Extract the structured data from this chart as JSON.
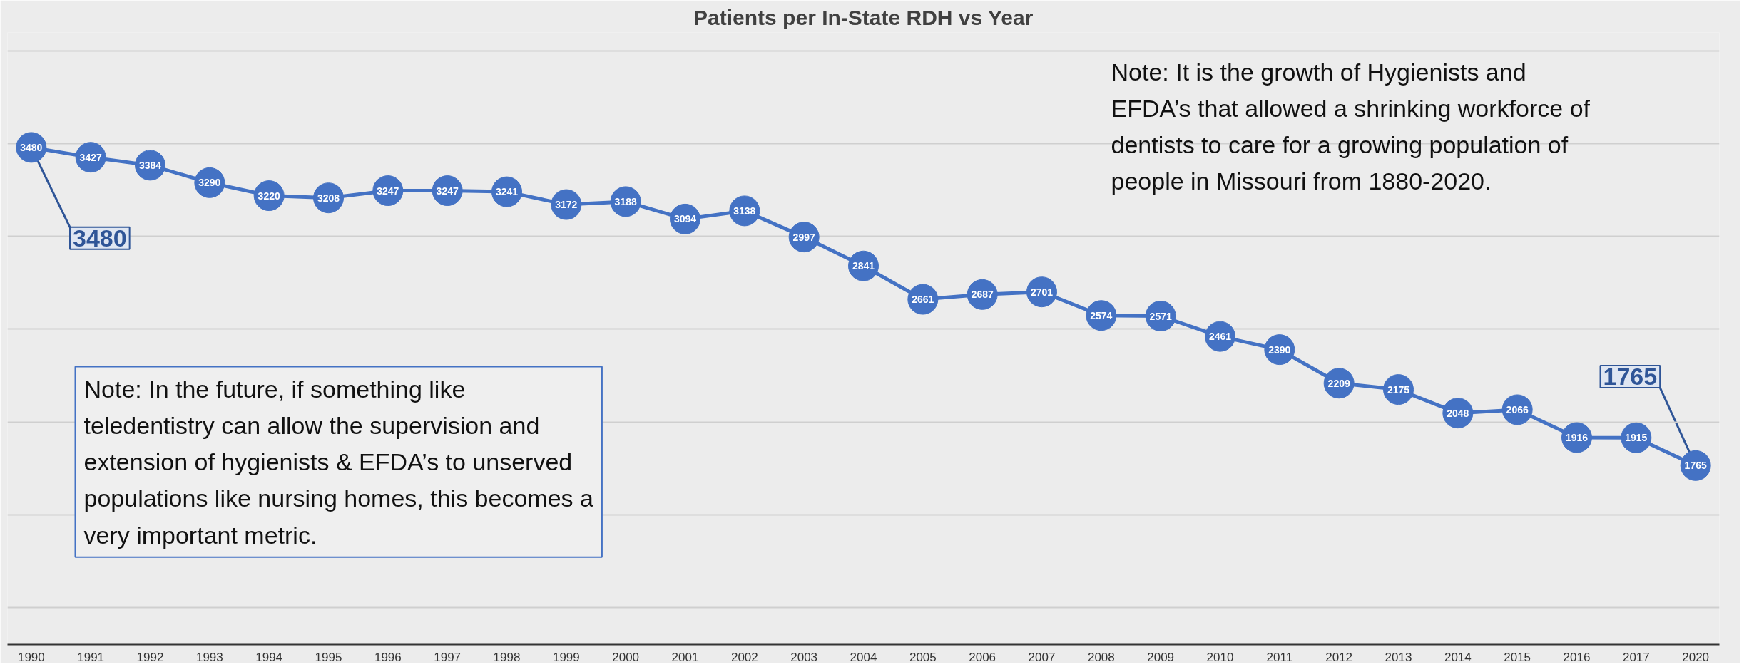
{
  "chart_data": {
    "type": "line",
    "title": "Patients per In-State RDH vs Year",
    "categories": [
      "1990",
      "1991",
      "1992",
      "1993",
      "1994",
      "1995",
      "1996",
      "1997",
      "1998",
      "1999",
      "2000",
      "2001",
      "2002",
      "2003",
      "2004",
      "2005",
      "2006",
      "2007",
      "2008",
      "2009",
      "2010",
      "2011",
      "2012",
      "2013",
      "2014",
      "2015",
      "2016",
      "2017",
      "2020"
    ],
    "values": [
      3480,
      3427,
      3384,
      3290,
      3220,
      3208,
      3247,
      3247,
      3241,
      3172,
      3188,
      3094,
      3138,
      2997,
      2841,
      2661,
      2687,
      2701,
      2574,
      2571,
      2461,
      2390,
      2209,
      2175,
      2048,
      2066,
      1916,
      1915,
      1765
    ],
    "color": "#4472c4",
    "marker": "circle",
    "line_style": "solid",
    "data_labels": true,
    "grid": "y",
    "tick_labels": "x",
    "ylim": [
      800,
      4100
    ],
    "yticks": [
      {
        "value": 1000,
        "label": null
      },
      {
        "value": 1500,
        "label": null
      },
      {
        "value": 2000,
        "label": null
      },
      {
        "value": 2500,
        "label": null
      },
      {
        "value": 3000,
        "label": null
      },
      {
        "value": 3500,
        "label": null
      },
      {
        "value": 4000,
        "label": null
      }
    ],
    "annotations": [
      {
        "text": "3480",
        "x": "1990",
        "y": 3480
      },
      {
        "text": "1765",
        "x": "2020",
        "y": 1765
      },
      "Note: It is the growth of Hygienists and EFDA’s that allowed a shrinking workforce of dentists to care for a growing population of people in Missouri from 1880-2020.",
      "Note: In the future, if something like teledentistry can allow the supervision and  extension of hygienists & EFDA’s to unserved populations like nursing homes, this becomes a very important metric."
    ]
  }
}
